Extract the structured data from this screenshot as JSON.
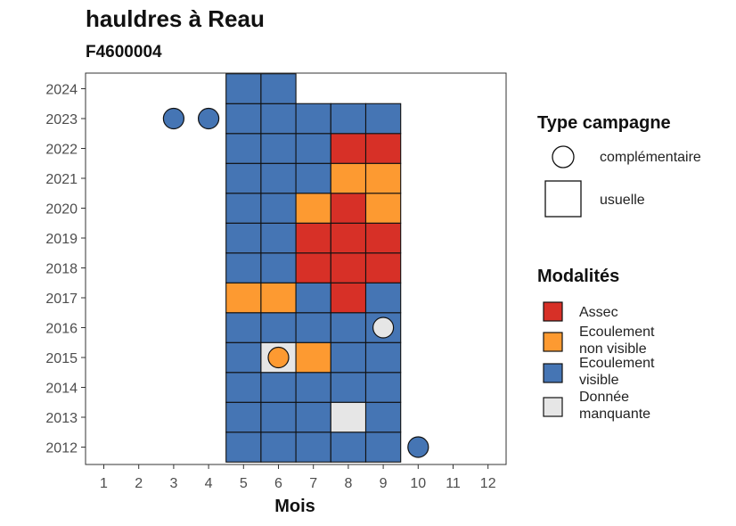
{
  "chart_data": {
    "type": "heatmap",
    "title": "hauldres à Reau",
    "subtitle": "F4600004",
    "xlabel": "Mois",
    "ylabel": "",
    "x_ticks": [
      "1",
      "2",
      "3",
      "4",
      "5",
      "6",
      "7",
      "8",
      "9",
      "10",
      "11",
      "12"
    ],
    "y_ticks": [
      "2012",
      "2013",
      "2014",
      "2015",
      "2016",
      "2017",
      "2018",
      "2019",
      "2020",
      "2021",
      "2022",
      "2023",
      "2024"
    ],
    "xlim": [
      1,
      12
    ],
    "ylim": [
      2012,
      2024
    ],
    "grid": false,
    "legend_position": "right",
    "colors": {
      "Assec": "#d73027",
      "Ecoulement non visible": "#fd9a31",
      "Ecoulement visible": "#4575b4",
      "Donnée manquante": "#e6e6e6"
    },
    "type_legend": {
      "title": "Type campagne",
      "items": [
        {
          "label": "complémentaire",
          "shape": "circle"
        },
        {
          "label": "usuelle",
          "shape": "square"
        }
      ]
    },
    "modalites_legend": {
      "title": "Modalités",
      "items": [
        {
          "key": "Assec",
          "lines": [
            "Assec"
          ]
        },
        {
          "key": "Ecoulement non visible",
          "lines": [
            "Ecoulement",
            "non visible"
          ]
        },
        {
          "key": "Ecoulement visible",
          "lines": [
            "Ecoulement",
            "visible"
          ]
        },
        {
          "key": "Donnée manquante",
          "lines": [
            "Donnée",
            "manquante"
          ]
        }
      ]
    },
    "usuelle": [
      {
        "year": 2012,
        "month": 5,
        "status": "Ecoulement visible"
      },
      {
        "year": 2012,
        "month": 6,
        "status": "Ecoulement visible"
      },
      {
        "year": 2012,
        "month": 7,
        "status": "Ecoulement visible"
      },
      {
        "year": 2012,
        "month": 8,
        "status": "Ecoulement visible"
      },
      {
        "year": 2012,
        "month": 9,
        "status": "Ecoulement visible"
      },
      {
        "year": 2013,
        "month": 5,
        "status": "Ecoulement visible"
      },
      {
        "year": 2013,
        "month": 6,
        "status": "Ecoulement visible"
      },
      {
        "year": 2013,
        "month": 7,
        "status": "Ecoulement visible"
      },
      {
        "year": 2013,
        "month": 8,
        "status": "Donnée manquante"
      },
      {
        "year": 2013,
        "month": 9,
        "status": "Ecoulement visible"
      },
      {
        "year": 2014,
        "month": 5,
        "status": "Ecoulement visible"
      },
      {
        "year": 2014,
        "month": 6,
        "status": "Ecoulement visible"
      },
      {
        "year": 2014,
        "month": 7,
        "status": "Ecoulement visible"
      },
      {
        "year": 2014,
        "month": 8,
        "status": "Ecoulement visible"
      },
      {
        "year": 2014,
        "month": 9,
        "status": "Ecoulement visible"
      },
      {
        "year": 2015,
        "month": 5,
        "status": "Ecoulement visible"
      },
      {
        "year": 2015,
        "month": 6,
        "status": "Donnée manquante"
      },
      {
        "year": 2015,
        "month": 7,
        "status": "Ecoulement non visible"
      },
      {
        "year": 2015,
        "month": 8,
        "status": "Ecoulement visible"
      },
      {
        "year": 2015,
        "month": 9,
        "status": "Ecoulement visible"
      },
      {
        "year": 2016,
        "month": 5,
        "status": "Ecoulement visible"
      },
      {
        "year": 2016,
        "month": 6,
        "status": "Ecoulement visible"
      },
      {
        "year": 2016,
        "month": 7,
        "status": "Ecoulement visible"
      },
      {
        "year": 2016,
        "month": 8,
        "status": "Ecoulement visible"
      },
      {
        "year": 2016,
        "month": 9,
        "status": "Ecoulement visible"
      },
      {
        "year": 2017,
        "month": 5,
        "status": "Ecoulement non visible"
      },
      {
        "year": 2017,
        "month": 6,
        "status": "Ecoulement non visible"
      },
      {
        "year": 2017,
        "month": 7,
        "status": "Ecoulement visible"
      },
      {
        "year": 2017,
        "month": 8,
        "status": "Assec"
      },
      {
        "year": 2017,
        "month": 9,
        "status": "Ecoulement visible"
      },
      {
        "year": 2018,
        "month": 5,
        "status": "Ecoulement visible"
      },
      {
        "year": 2018,
        "month": 6,
        "status": "Ecoulement visible"
      },
      {
        "year": 2018,
        "month": 7,
        "status": "Assec"
      },
      {
        "year": 2018,
        "month": 8,
        "status": "Assec"
      },
      {
        "year": 2018,
        "month": 9,
        "status": "Assec"
      },
      {
        "year": 2019,
        "month": 5,
        "status": "Ecoulement visible"
      },
      {
        "year": 2019,
        "month": 6,
        "status": "Ecoulement visible"
      },
      {
        "year": 2019,
        "month": 7,
        "status": "Assec"
      },
      {
        "year": 2019,
        "month": 8,
        "status": "Assec"
      },
      {
        "year": 2019,
        "month": 9,
        "status": "Assec"
      },
      {
        "year": 2020,
        "month": 5,
        "status": "Ecoulement visible"
      },
      {
        "year": 2020,
        "month": 6,
        "status": "Ecoulement visible"
      },
      {
        "year": 2020,
        "month": 7,
        "status": "Ecoulement non visible"
      },
      {
        "year": 2020,
        "month": 8,
        "status": "Assec"
      },
      {
        "year": 2020,
        "month": 9,
        "status": "Ecoulement non visible"
      },
      {
        "year": 2021,
        "month": 5,
        "status": "Ecoulement visible"
      },
      {
        "year": 2021,
        "month": 6,
        "status": "Ecoulement visible"
      },
      {
        "year": 2021,
        "month": 7,
        "status": "Ecoulement visible"
      },
      {
        "year": 2021,
        "month": 8,
        "status": "Ecoulement non visible"
      },
      {
        "year": 2021,
        "month": 9,
        "status": "Ecoulement non visible"
      },
      {
        "year": 2022,
        "month": 5,
        "status": "Ecoulement visible"
      },
      {
        "year": 2022,
        "month": 6,
        "status": "Ecoulement visible"
      },
      {
        "year": 2022,
        "month": 7,
        "status": "Ecoulement visible"
      },
      {
        "year": 2022,
        "month": 8,
        "status": "Assec"
      },
      {
        "year": 2022,
        "month": 9,
        "status": "Assec"
      },
      {
        "year": 2023,
        "month": 5,
        "status": "Ecoulement visible"
      },
      {
        "year": 2023,
        "month": 6,
        "status": "Ecoulement visible"
      },
      {
        "year": 2023,
        "month": 7,
        "status": "Ecoulement visible"
      },
      {
        "year": 2023,
        "month": 8,
        "status": "Ecoulement visible"
      },
      {
        "year": 2023,
        "month": 9,
        "status": "Ecoulement visible"
      },
      {
        "year": 2024,
        "month": 5,
        "status": "Ecoulement visible"
      },
      {
        "year": 2024,
        "month": 6,
        "status": "Ecoulement visible"
      }
    ],
    "complementaire": [
      {
        "year": 2012,
        "month": 10,
        "status": "Ecoulement visible"
      },
      {
        "year": 2015,
        "month": 6,
        "status": "Ecoulement non visible"
      },
      {
        "year": 2016,
        "month": 9,
        "status": "Donnée manquante"
      },
      {
        "year": 2023,
        "month": 3,
        "status": "Ecoulement visible"
      },
      {
        "year": 2023,
        "month": 4,
        "status": "Ecoulement visible"
      }
    ]
  }
}
